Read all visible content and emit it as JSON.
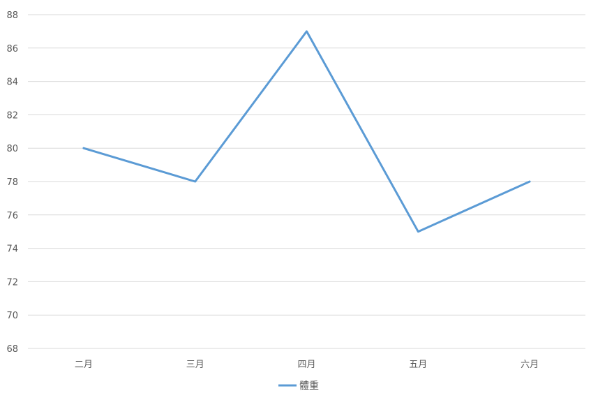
{
  "chart_data": {
    "type": "line",
    "title": "",
    "xlabel": "",
    "ylabel": "",
    "categories": [
      "二月",
      "三月",
      "四月",
      "五月",
      "六月"
    ],
    "series": [
      {
        "name": "體重",
        "values": [
          80,
          78,
          87,
          75,
          78
        ],
        "color": "#5b9bd5"
      }
    ],
    "ylim": [
      68,
      88
    ],
    "yticks": [
      68,
      70,
      72,
      74,
      76,
      78,
      80,
      82,
      84,
      86,
      88
    ],
    "grid": true,
    "legend_position": "bottom"
  }
}
